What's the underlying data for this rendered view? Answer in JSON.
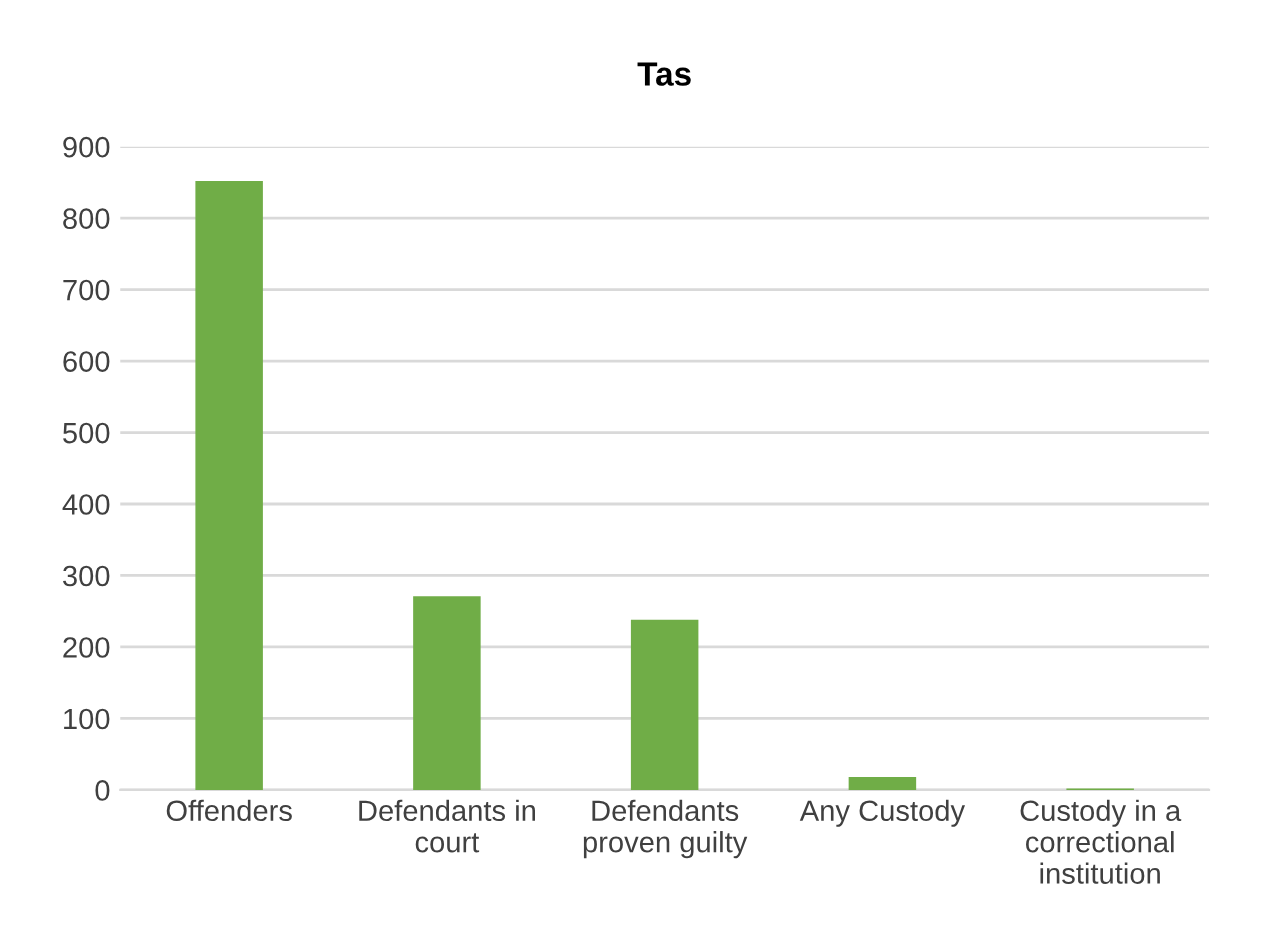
{
  "chart_data": {
    "type": "bar",
    "title": "Tas",
    "categories": [
      "Offenders",
      "Defendants in court",
      "Defendants proven guilty",
      "Any Custody",
      "Custody in a correctional institution"
    ],
    "values": [
      852,
      271,
      238,
      18,
      2
    ],
    "color": "#70ad47",
    "ylim": [
      0,
      900
    ],
    "yticks": [
      0,
      100,
      200,
      300,
      400,
      500,
      600,
      700,
      800,
      900
    ],
    "grid": "y"
  }
}
